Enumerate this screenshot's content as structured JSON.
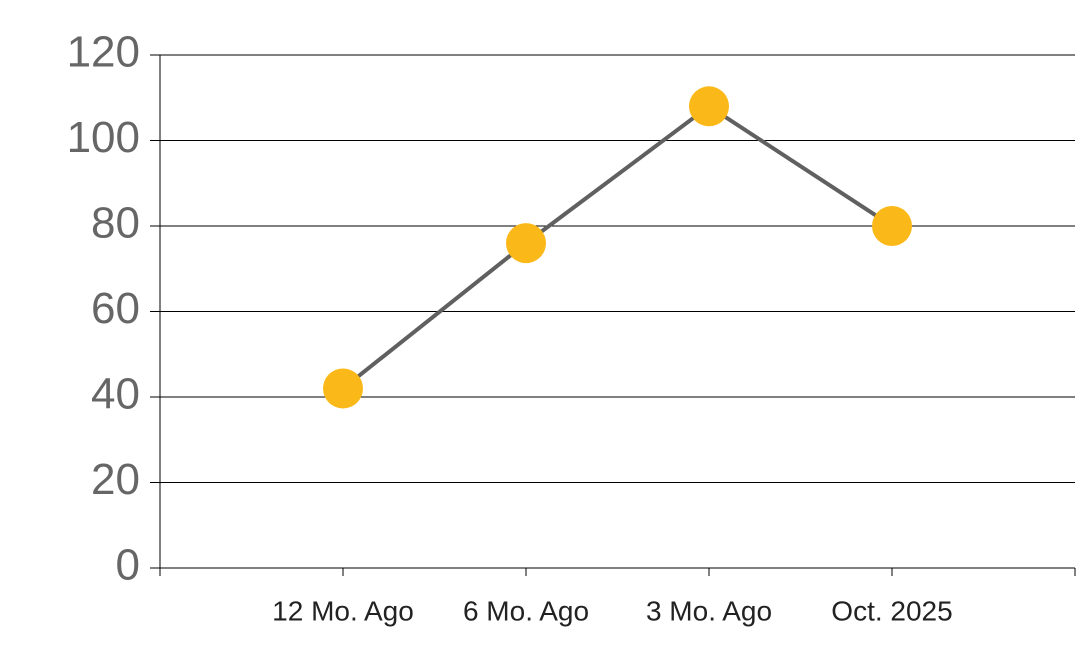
{
  "chart_data": {
    "type": "line",
    "categories": [
      "12 Mo. Ago",
      "6 Mo. Ago",
      "3 Mo. Ago",
      "Oct. 2025"
    ],
    "series": [
      {
        "values": [
          42,
          76,
          108,
          80
        ],
        "color": "#606060",
        "marker_color": "#fbb919"
      }
    ],
    "ylim": [
      0,
      120
    ],
    "yticks": [
      0,
      20,
      40,
      60,
      80,
      100,
      120
    ],
    "grid": true
  }
}
